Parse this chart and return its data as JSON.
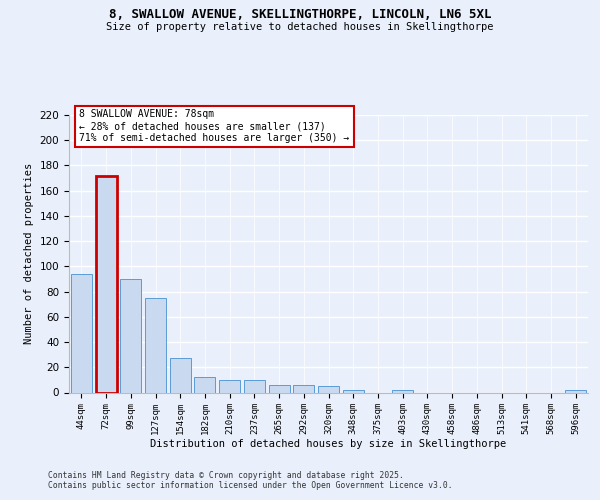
{
  "title_line1": "8, SWALLOW AVENUE, SKELLINGTHORPE, LINCOLN, LN6 5XL",
  "title_line2": "Size of property relative to detached houses in Skellingthorpe",
  "xlabel": "Distribution of detached houses by size in Skellingthorpe",
  "ylabel": "Number of detached properties",
  "categories": [
    "44sqm",
    "72sqm",
    "99sqm",
    "127sqm",
    "154sqm",
    "182sqm",
    "210sqm",
    "237sqm",
    "265sqm",
    "292sqm",
    "320sqm",
    "348sqm",
    "375sqm",
    "403sqm",
    "430sqm",
    "458sqm",
    "486sqm",
    "513sqm",
    "541sqm",
    "568sqm",
    "596sqm"
  ],
  "values": [
    94,
    172,
    90,
    75,
    27,
    12,
    10,
    10,
    6,
    6,
    5,
    2,
    0,
    2,
    0,
    0,
    0,
    0,
    0,
    0,
    2
  ],
  "highlight_index": 1,
  "bar_color": "#c9d9f0",
  "bar_edge_color": "#5b9bd5",
  "highlight_bar_edge_color": "#cc0000",
  "annotation_text": "8 SWALLOW AVENUE: 78sqm\n← 28% of detached houses are smaller (137)\n71% of semi-detached houses are larger (350) →",
  "annotation_box_color": "#ffffff",
  "annotation_edge_color": "#cc0000",
  "footer_line1": "Contains HM Land Registry data © Crown copyright and database right 2025.",
  "footer_line2": "Contains public sector information licensed under the Open Government Licence v3.0.",
  "background_color": "#eaf0fb",
  "plot_bg_color": "#eaf0fb",
  "ylim": [
    0,
    220
  ],
  "yticks": [
    0,
    20,
    40,
    60,
    80,
    100,
    120,
    140,
    160,
    180,
    200,
    220
  ]
}
